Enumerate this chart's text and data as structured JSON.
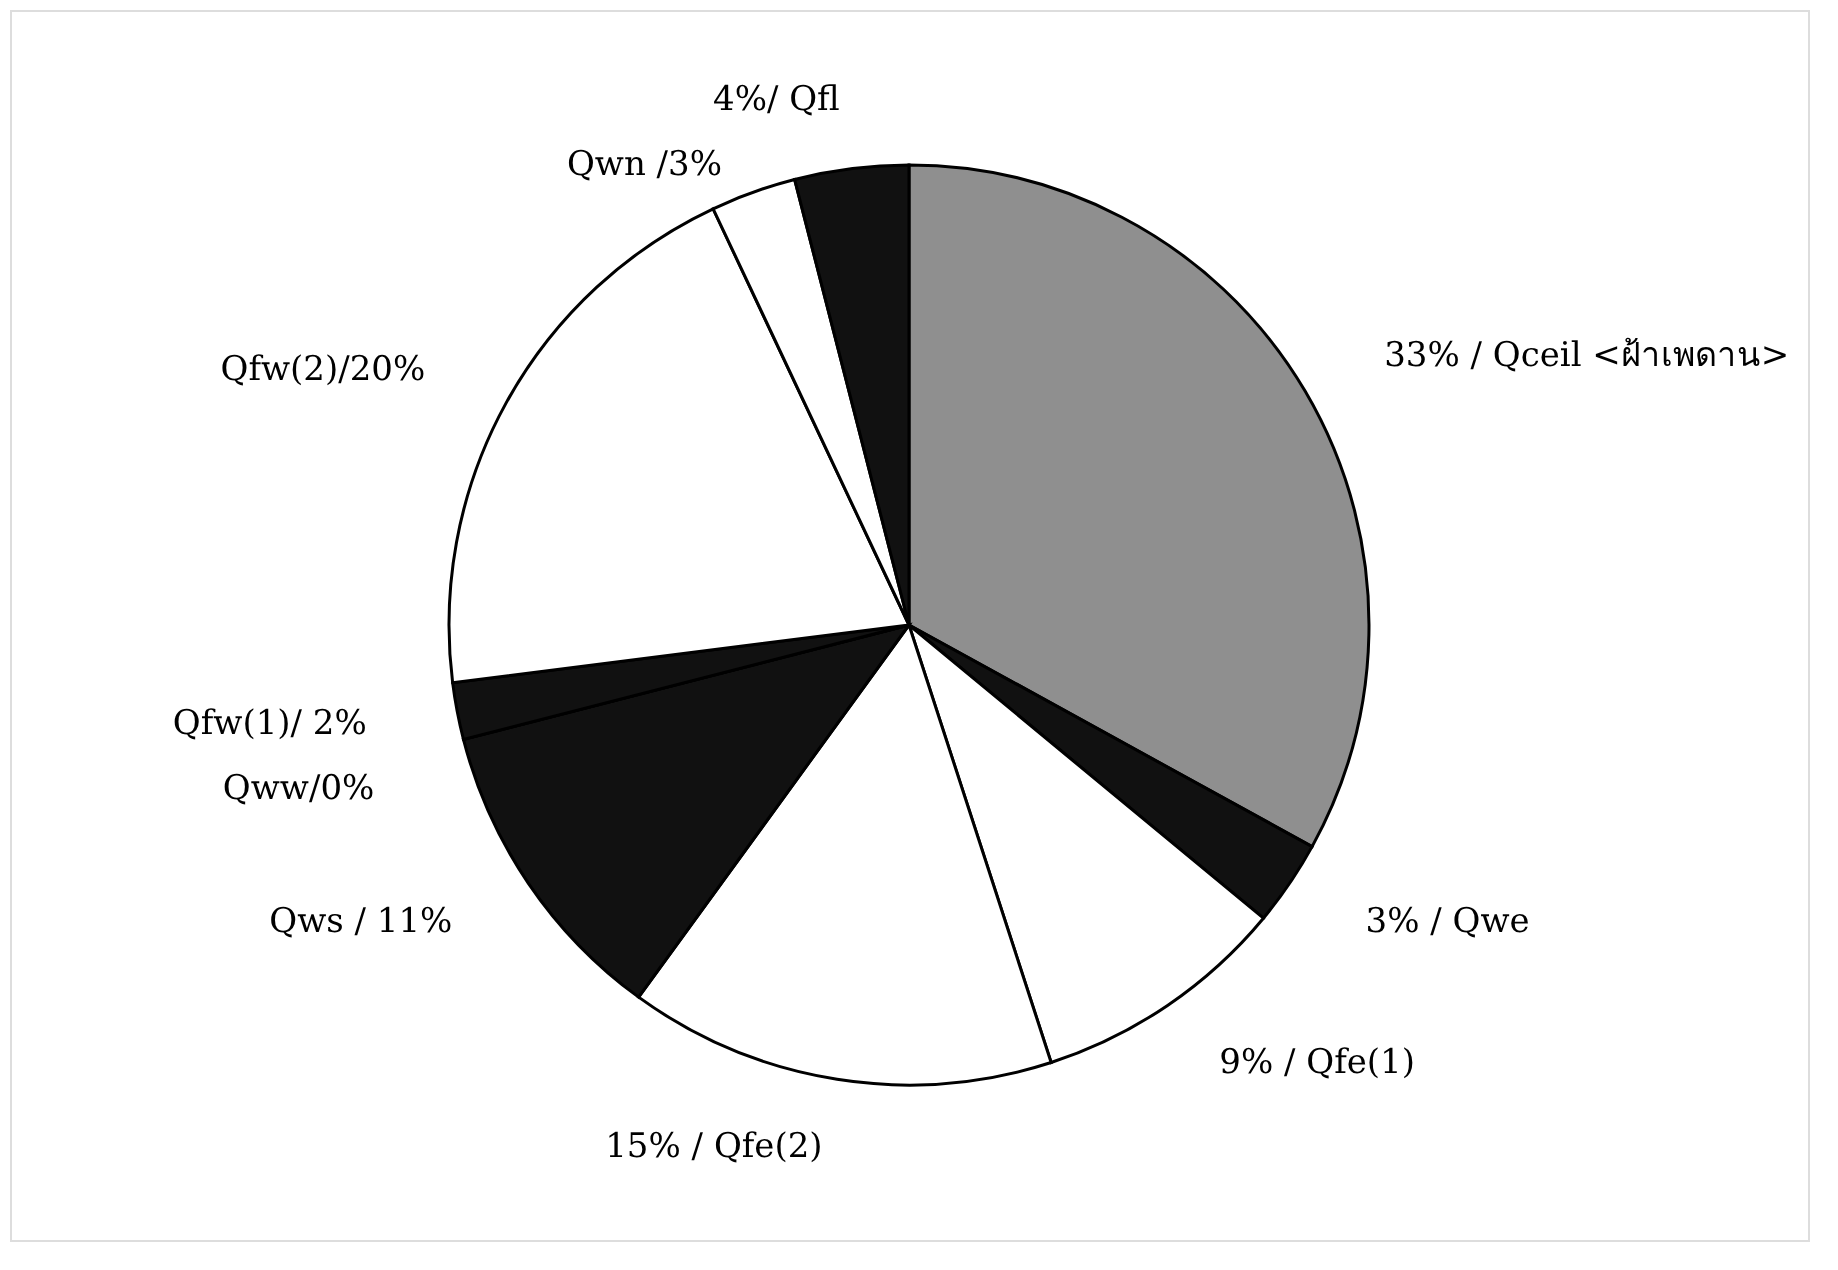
{
  "chart_data": {
    "type": "pie",
    "categories": [
      "33% / Qceil <ฝ้าเพดาน>",
      "3% / Qwe",
      "9% / Qfe(1)",
      "15% / Qfe(2)",
      "Qws / 11%",
      "Qww/0%",
      "Qfw(1)/ 2%",
      "Qfw(2)/20%",
      "Qwn /3%",
      "4%/ Qfl"
    ],
    "values": [
      33,
      3,
      9,
      15,
      11,
      0,
      2,
      20,
      3,
      4
    ],
    "colors": [
      "#8f8f8f",
      "#111111",
      "#ffffff",
      "#ffffff",
      "#111111",
      "#111111",
      "#111111",
      "#ffffff",
      "#ffffff",
      "#111111"
    ],
    "legend": false
  }
}
